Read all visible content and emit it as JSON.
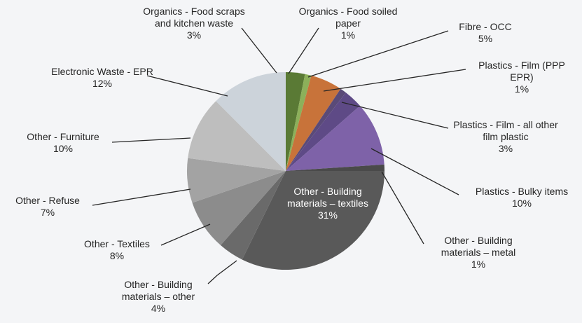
{
  "chart_data": {
    "type": "pie",
    "categories": [
      "Organics - Food scraps and kitchen waste",
      "Organics - Food soiled paper",
      "Fibre - OCC",
      "Plastics - Film (PPP EPR)",
      "Plastics - Film - all other film plastic",
      "Plastics - Bulky items",
      "Other - Building materials – metal",
      "Other - Building materials – textiles",
      "Other - Building materials – other",
      "Other - Textiles",
      "Other - Refuse",
      "Other - Furniture",
      "Electronic Waste - EPR"
    ],
    "values": [
      3,
      1,
      5,
      1,
      3,
      10,
      1,
      31,
      4,
      8,
      7,
      10,
      12
    ],
    "value_labels": [
      "3%",
      "1%",
      "5%",
      "1%",
      "3%",
      "10%",
      "1%",
      "31%",
      "4%",
      "8%",
      "7%",
      "10%",
      "12%"
    ],
    "colors": [
      "#5a7a35",
      "#8cb05a",
      "#c8733a",
      "#5a4a78",
      "#5e4a86",
      "#7e62a8",
      "#4a4a4a",
      "#595959",
      "#6a6a6a",
      "#8c8c8c",
      "#a3a3a3",
      "#bebebe",
      "#ccd3da"
    ]
  }
}
